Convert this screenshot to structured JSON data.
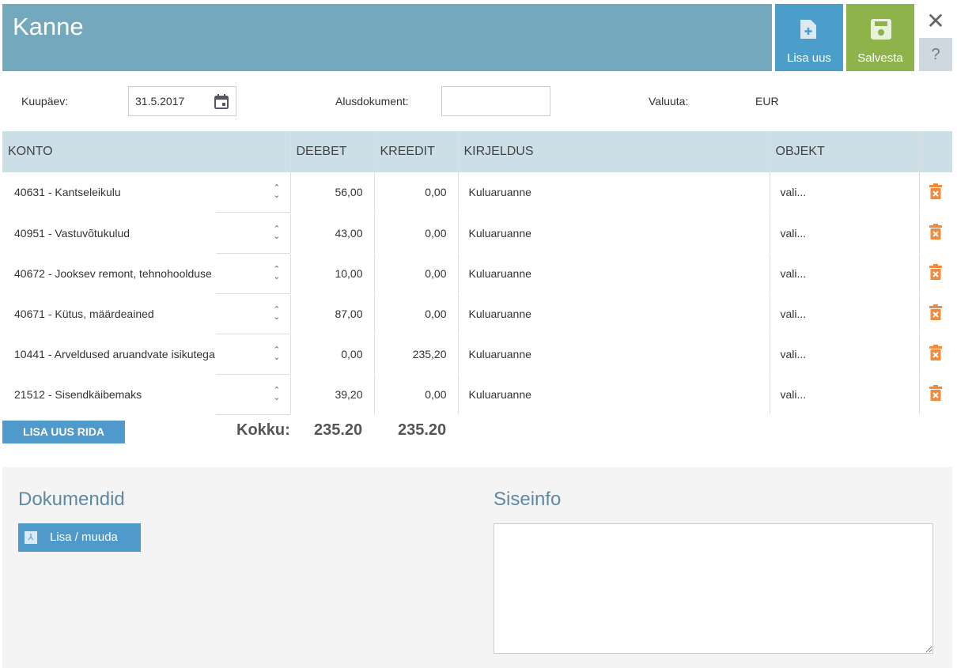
{
  "header": {
    "title": "Kanne",
    "add_new": "Lisa uus",
    "save": "Salvesta",
    "close": "✕",
    "help": "?"
  },
  "form": {
    "date_label": "Kuupäev:",
    "date_value": "31.5.2017",
    "base_doc_label": "Alusdokument:",
    "base_doc_value": "",
    "currency_label": "Valuuta:",
    "currency_value": "EUR"
  },
  "table": {
    "headers": [
      "KONTO",
      "DEEBET",
      "KREEDIT",
      "KIRJELDUS",
      "OBJEKT"
    ],
    "rows": [
      {
        "konto": "40631 - Kantseleikulu",
        "deebet": "56,00",
        "kreedit": "0,00",
        "kirjeldus": "Kuluaruanne",
        "objekt": "vali..."
      },
      {
        "konto": "40951 - Vastuvõtukulud",
        "deebet": "43,00",
        "kreedit": "0,00",
        "kirjeldus": "Kuluaruanne",
        "objekt": "vali..."
      },
      {
        "konto": "40672 - Jooksev remont, tehnohoolduse",
        "deebet": "10,00",
        "kreedit": "0,00",
        "kirjeldus": "Kuluaruanne",
        "objekt": "vali..."
      },
      {
        "konto": "40671 - Kütus, määrdeained",
        "deebet": "87,00",
        "kreedit": "0,00",
        "kirjeldus": "Kuluaruanne",
        "objekt": "vali..."
      },
      {
        "konto": "10441 - Arveldused aruandvate isikutega",
        "deebet": "0,00",
        "kreedit": "235,20",
        "kirjeldus": "Kuluaruanne",
        "objekt": "vali..."
      },
      {
        "konto": "21512 - Sisendkäibemaks",
        "deebet": "39,20",
        "kreedit": "0,00",
        "kirjeldus": "Kuluaruanne",
        "objekt": "vali..."
      }
    ]
  },
  "totals": {
    "add_row": "LISA UUS RIDA",
    "label": "Kokku:",
    "deebet": "235.20",
    "kreedit": "235.20"
  },
  "documents": {
    "title": "Dokumendid",
    "button": "Lisa / muuda"
  },
  "internal": {
    "title": "Siseinfo",
    "value": ""
  },
  "colors": {
    "header": "#74a8bc",
    "add_new": "#4b9dca",
    "save": "#8db34a",
    "delete_icon": "#f08a3c"
  }
}
